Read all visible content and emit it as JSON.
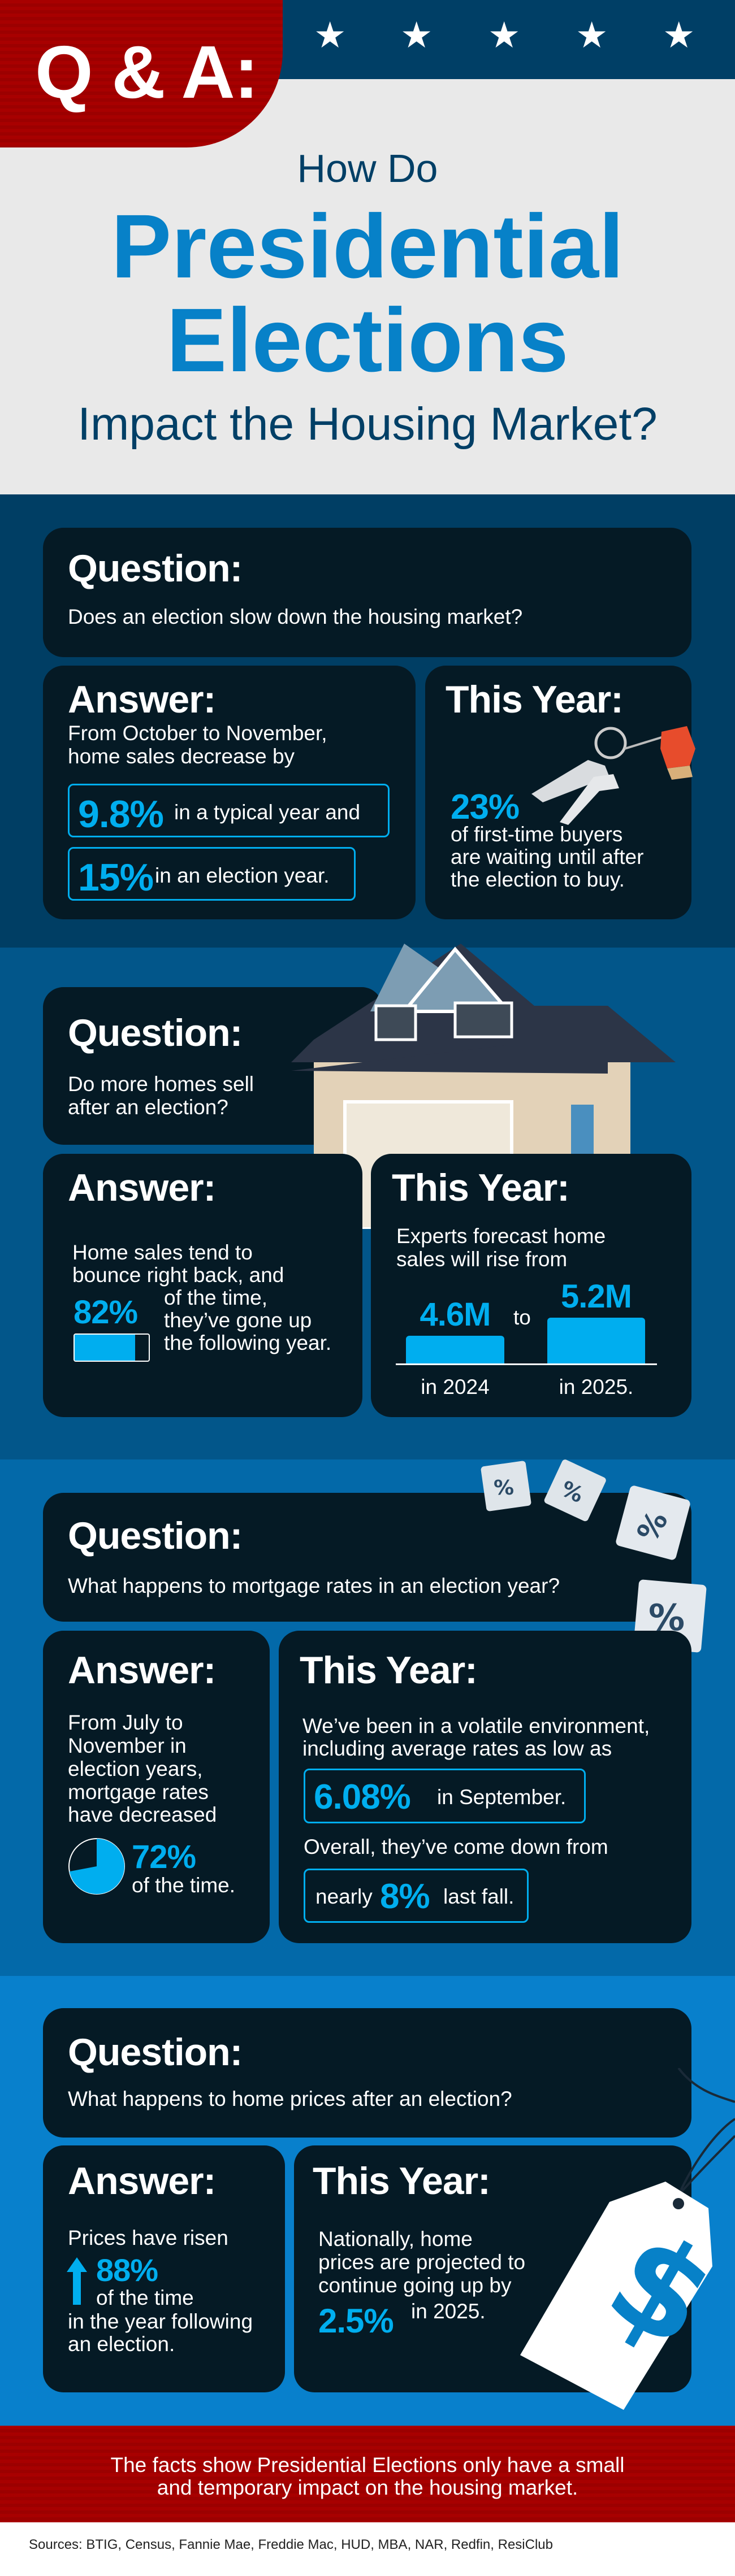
{
  "colors": {
    "navy": "#003f66",
    "red": "#a80000",
    "accent": "#00aeef",
    "card": "#051a25",
    "title_blue": "#0781c8"
  },
  "header": {
    "badge": "Q & A:",
    "title_line1": "How Do",
    "title_line2": "Presidential",
    "title_line3": "Elections",
    "title_line4": "Impact the Housing Market?",
    "stars": 5
  },
  "sections": [
    {
      "question_label": "Question:",
      "question": "Does an election slow down the housing market?",
      "answer_label": "Answer:",
      "answer_lines": [
        "From October to November,",
        "home sales decrease by"
      ],
      "stat1": "9.8%",
      "stat1_text": "in a typical year and",
      "stat2": "15%",
      "stat2_text": "in an election year.",
      "this_year_label": "This Year:",
      "ty_stat": "23%",
      "ty_lines": [
        "of first-time buyers",
        "are waiting until after",
        "the election to buy."
      ],
      "image": "keys-icon"
    },
    {
      "question_label": "Question:",
      "question_lines": [
        "Do more homes sell",
        "after an election?"
      ],
      "answer_label": "Answer:",
      "answer_lines": [
        "Home sales tend to",
        "bounce right back, and"
      ],
      "stat": "82%",
      "stat_fill": 0.82,
      "stat_lines": [
        "of the time,",
        "they’ve gone up",
        "the following year."
      ],
      "this_year_label": "This Year:",
      "ty_lines": [
        "Experts forecast home",
        "sales will rise from"
      ],
      "chart_data": {
        "type": "bar",
        "categories": [
          "in 2024",
          "in 2025."
        ],
        "values": [
          4.6,
          5.2
        ],
        "value_labels": [
          "4.6M",
          "5.2M"
        ],
        "connector": "to"
      },
      "image": "house-icon"
    },
    {
      "question_label": "Question:",
      "question": "What happens to mortgage rates in an election year?",
      "answer_label": "Answer:",
      "answer_lines": [
        "From July to",
        "November in",
        "election years,",
        "mortgage rates",
        "have decreased"
      ],
      "stat": "72%",
      "stat_fraction": 0.72,
      "stat_text": "of the time.",
      "this_year_label": "This Year:",
      "ty_lines": [
        "We’ve been in a volatile environment,",
        "including average rates as low as"
      ],
      "box1_stat": "6.08%",
      "box1_text": "in September.",
      "ty_line3": "Overall, they’ve come down from",
      "box2_pre": "nearly",
      "box2_stat": "8%",
      "box2_text": "last fall.",
      "image": "percent-cubes-icon"
    },
    {
      "question_label": "Question:",
      "question": "What happens to home prices after an election?",
      "answer_label": "Answer:",
      "answer_line1": "Prices have risen",
      "stat": "88%",
      "stat_text": "of the time",
      "answer_lines": [
        "in the year following",
        "an election."
      ],
      "this_year_label": "This Year:",
      "ty_lines": [
        "Nationally, home",
        "prices are projected to",
        "continue going up by"
      ],
      "ty_stat": "2.5%",
      "ty_stat_text": "in 2025.",
      "image": "price-tag-icon"
    }
  ],
  "footer": {
    "lines": [
      "The facts show Presidential Elections only have a small",
      "and temporary impact on the housing market."
    ],
    "sources": "Sources: BTIG, Census, Fannie Mae, Freddie Mac, HUD, MBA, NAR, Redfin, ResiClub"
  }
}
